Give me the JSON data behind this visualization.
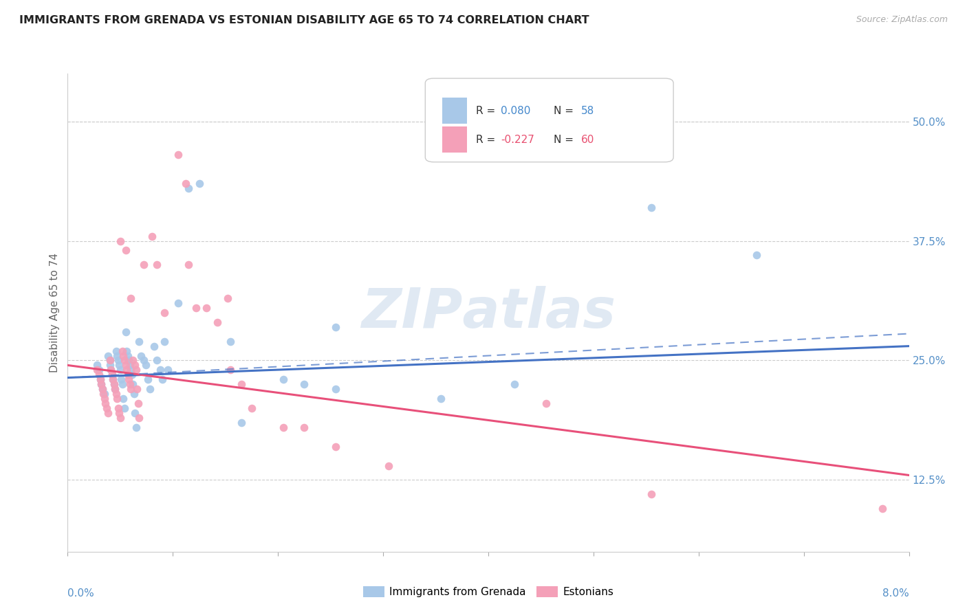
{
  "title": "IMMIGRANTS FROM GRENADA VS ESTONIAN DISABILITY AGE 65 TO 74 CORRELATION CHART",
  "source": "Source: ZipAtlas.com",
  "ylabel": "Disability Age 65 to 74",
  "right_yticks": [
    12.5,
    25.0,
    37.5,
    50.0
  ],
  "xlim": [
    0.0,
    8.0
  ],
  "ylim": [
    5.0,
    55.0
  ],
  "legend_bottom": [
    "Immigrants from Grenada",
    "Estonians"
  ],
  "blue_color": "#a8c8e8",
  "pink_color": "#f4a0b8",
  "blue_line_color": "#4472c4",
  "pink_line_color": "#e8507a",
  "blue_scatter": [
    [
      0.28,
      24.5
    ],
    [
      0.3,
      24.0
    ],
    [
      0.31,
      23.0
    ],
    [
      0.32,
      22.5
    ],
    [
      0.33,
      22.0
    ],
    [
      0.35,
      21.5
    ],
    [
      0.38,
      25.5
    ],
    [
      0.4,
      25.0
    ],
    [
      0.4,
      24.5
    ],
    [
      0.41,
      24.0
    ],
    [
      0.42,
      23.5
    ],
    [
      0.43,
      23.0
    ],
    [
      0.44,
      22.5
    ],
    [
      0.45,
      22.0
    ],
    [
      0.46,
      26.0
    ],
    [
      0.47,
      25.5
    ],
    [
      0.48,
      25.0
    ],
    [
      0.49,
      24.5
    ],
    [
      0.5,
      24.0
    ],
    [
      0.51,
      23.0
    ],
    [
      0.52,
      22.5
    ],
    [
      0.53,
      21.0
    ],
    [
      0.54,
      20.0
    ],
    [
      0.55,
      28.0
    ],
    [
      0.56,
      26.0
    ],
    [
      0.57,
      25.5
    ],
    [
      0.58,
      25.0
    ],
    [
      0.59,
      24.5
    ],
    [
      0.6,
      24.0
    ],
    [
      0.61,
      23.5
    ],
    [
      0.62,
      22.5
    ],
    [
      0.63,
      21.5
    ],
    [
      0.64,
      19.5
    ],
    [
      0.65,
      18.0
    ],
    [
      0.68,
      27.0
    ],
    [
      0.7,
      25.5
    ],
    [
      0.72,
      25.0
    ],
    [
      0.74,
      24.5
    ],
    [
      0.76,
      23.0
    ],
    [
      0.78,
      22.0
    ],
    [
      0.82,
      26.5
    ],
    [
      0.85,
      25.0
    ],
    [
      0.88,
      24.0
    ],
    [
      0.9,
      23.0
    ],
    [
      0.92,
      27.0
    ],
    [
      0.95,
      24.0
    ],
    [
      1.05,
      31.0
    ],
    [
      1.15,
      43.0
    ],
    [
      1.25,
      43.5
    ],
    [
      1.55,
      27.0
    ],
    [
      1.65,
      18.5
    ],
    [
      2.05,
      23.0
    ],
    [
      2.25,
      22.5
    ],
    [
      2.55,
      28.5
    ],
    [
      2.55,
      22.0
    ],
    [
      3.55,
      21.0
    ],
    [
      4.25,
      22.5
    ],
    [
      5.55,
      41.0
    ],
    [
      6.55,
      36.0
    ]
  ],
  "pink_scatter": [
    [
      0.28,
      24.0
    ],
    [
      0.3,
      23.5
    ],
    [
      0.31,
      23.0
    ],
    [
      0.32,
      22.5
    ],
    [
      0.33,
      22.0
    ],
    [
      0.34,
      21.5
    ],
    [
      0.35,
      21.0
    ],
    [
      0.36,
      20.5
    ],
    [
      0.37,
      20.0
    ],
    [
      0.38,
      19.5
    ],
    [
      0.4,
      25.0
    ],
    [
      0.41,
      24.0
    ],
    [
      0.42,
      23.5
    ],
    [
      0.43,
      23.0
    ],
    [
      0.44,
      22.5
    ],
    [
      0.45,
      22.0
    ],
    [
      0.46,
      21.5
    ],
    [
      0.47,
      21.0
    ],
    [
      0.48,
      20.0
    ],
    [
      0.49,
      19.5
    ],
    [
      0.5,
      19.0
    ],
    [
      0.52,
      26.0
    ],
    [
      0.53,
      25.5
    ],
    [
      0.54,
      25.0
    ],
    [
      0.55,
      24.5
    ],
    [
      0.56,
      24.0
    ],
    [
      0.57,
      23.5
    ],
    [
      0.58,
      23.0
    ],
    [
      0.59,
      22.5
    ],
    [
      0.6,
      22.0
    ],
    [
      0.5,
      37.5
    ],
    [
      0.55,
      36.5
    ],
    [
      0.6,
      31.5
    ],
    [
      0.62,
      25.0
    ],
    [
      0.64,
      24.5
    ],
    [
      0.65,
      24.0
    ],
    [
      0.66,
      22.0
    ],
    [
      0.67,
      20.5
    ],
    [
      0.68,
      19.0
    ],
    [
      0.72,
      35.0
    ],
    [
      0.8,
      38.0
    ],
    [
      0.85,
      35.0
    ],
    [
      0.92,
      30.0
    ],
    [
      1.05,
      46.5
    ],
    [
      1.12,
      43.5
    ],
    [
      1.15,
      35.0
    ],
    [
      1.22,
      30.5
    ],
    [
      1.32,
      30.5
    ],
    [
      1.42,
      29.0
    ],
    [
      1.52,
      31.5
    ],
    [
      1.55,
      24.0
    ],
    [
      1.65,
      22.5
    ],
    [
      1.75,
      20.0
    ],
    [
      2.05,
      18.0
    ],
    [
      2.25,
      18.0
    ],
    [
      2.55,
      16.0
    ],
    [
      3.05,
      14.0
    ],
    [
      4.55,
      20.5
    ],
    [
      5.55,
      11.0
    ],
    [
      7.75,
      9.5
    ]
  ],
  "blue_solid_line": [
    [
      0.0,
      23.2
    ],
    [
      8.0,
      26.5
    ]
  ],
  "pink_solid_line": [
    [
      0.0,
      24.5
    ],
    [
      8.0,
      13.0
    ]
  ],
  "blue_dash_line": [
    [
      0.0,
      23.2
    ],
    [
      8.0,
      27.8
    ]
  ]
}
